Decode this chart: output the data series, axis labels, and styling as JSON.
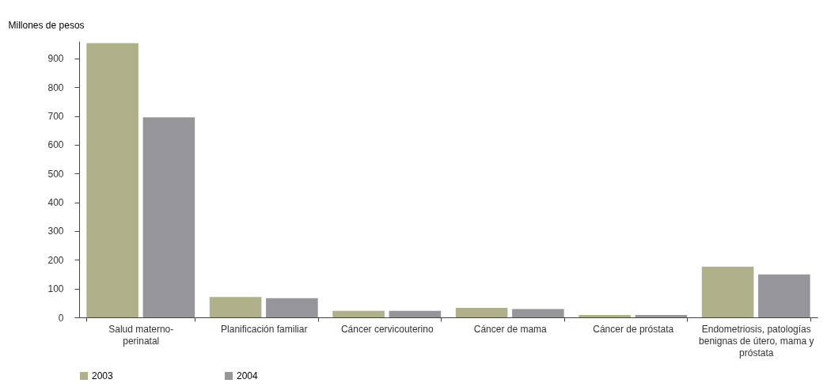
{
  "chart_data": {
    "type": "bar",
    "ylabel": "Millones de pesos",
    "categories": [
      "Salud materno-perinatal",
      "Planificación familiar",
      "Cáncer cervicouterino",
      "Cáncer de mama",
      "Cáncer de próstata",
      "Endometriosis, patologías benignas de útero, mama y próstata"
    ],
    "series": [
      {
        "name": "2003",
        "color": "#b0b08a",
        "values": [
          953,
          71,
          23,
          33,
          8,
          176
        ]
      },
      {
        "name": "2004",
        "color": "#96969a",
        "values": [
          695,
          67,
          23,
          29,
          8,
          149
        ]
      }
    ],
    "ylim": [
      0,
      960
    ],
    "yticks": [
      0,
      100,
      200,
      300,
      400,
      500,
      600,
      700,
      800,
      900
    ],
    "grid": false,
    "legend": "bottom"
  }
}
